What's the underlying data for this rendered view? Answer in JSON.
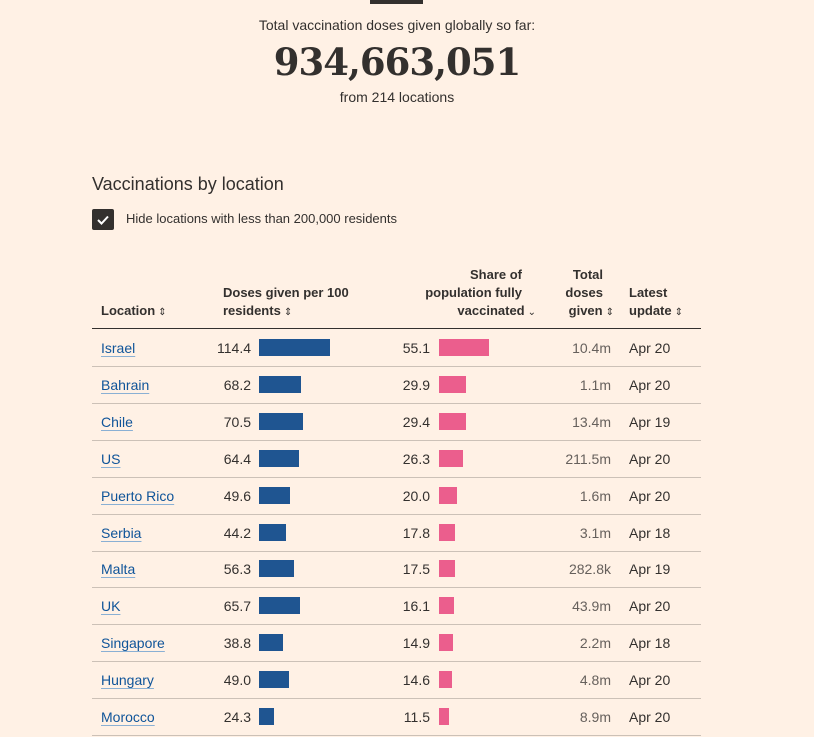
{
  "header": {
    "subtitle": "Total vaccination doses given globally so far:",
    "total": "934,663,051",
    "locations_note": "from 214 locations"
  },
  "section": {
    "title": "Vaccinations by location",
    "filter_label": "Hide locations with less than 200,000 residents",
    "filter_checked": true
  },
  "table": {
    "headers": {
      "location": "Location",
      "doses_line1": "Doses given per 100",
      "doses_line2": "residents",
      "share_line1": "Share of",
      "share_line2": "population fully",
      "share_line3": "vaccinated",
      "total_line1": "Total",
      "total_line2": "doses",
      "total_line3": "given",
      "update_line1": "Latest",
      "update_line2": "update"
    },
    "sort_column": "share",
    "sort_direction": "descending"
  },
  "chart_data": {
    "type": "table",
    "columns": [
      "Location",
      "Doses given per 100 residents",
      "Share of population fully vaccinated",
      "Total doses given",
      "Latest update"
    ],
    "rows": [
      {
        "location": "Israel",
        "doses": "114.4",
        "share": "55.1",
        "total": "10.4m",
        "update": "Apr 20"
      },
      {
        "location": "Bahrain",
        "doses": "68.2",
        "share": "29.9",
        "total": "1.1m",
        "update": "Apr 20"
      },
      {
        "location": "Chile",
        "doses": "70.5",
        "share": "29.4",
        "total": "13.4m",
        "update": "Apr 19"
      },
      {
        "location": "US",
        "doses": "64.4",
        "share": "26.3",
        "total": "211.5m",
        "update": "Apr 20"
      },
      {
        "location": "Puerto Rico",
        "doses": "49.6",
        "share": "20.0",
        "total": "1.6m",
        "update": "Apr 20"
      },
      {
        "location": "Serbia",
        "doses": "44.2",
        "share": "17.8",
        "total": "3.1m",
        "update": "Apr 18"
      },
      {
        "location": "Malta",
        "doses": "56.3",
        "share": "17.5",
        "total": "282.8k",
        "update": "Apr 19"
      },
      {
        "location": "UK",
        "doses": "65.7",
        "share": "16.1",
        "total": "43.9m",
        "update": "Apr 20"
      },
      {
        "location": "Singapore",
        "doses": "38.8",
        "share": "14.9",
        "total": "2.2m",
        "update": "Apr 18"
      },
      {
        "location": "Hungary",
        "doses": "49.0",
        "share": "14.6",
        "total": "4.8m",
        "update": "Apr 20"
      },
      {
        "location": "Morocco",
        "doses": "24.3",
        "share": "11.5",
        "total": "8.9m",
        "update": "Apr 20"
      }
    ],
    "colors": {
      "doses_bar": "#1f5591",
      "share_bar": "#eb5e8d"
    }
  }
}
